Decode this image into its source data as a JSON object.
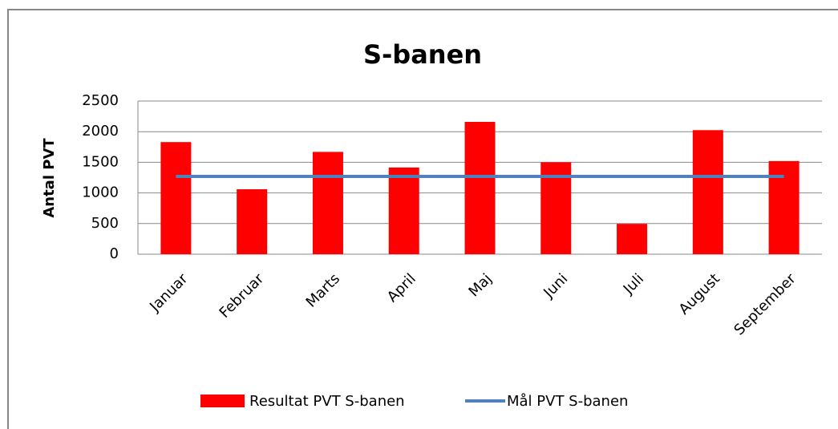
{
  "chart_data": {
    "type": "bar",
    "title": "S-banen",
    "y_label": "Antal PVT",
    "categories": [
      "Januar",
      "Februar",
      "Marts",
      "April",
      "Maj",
      "Juni",
      "Juli",
      "August",
      "September"
    ],
    "series": [
      {
        "name": "Resultat PVT S-banen",
        "color": "#ff0000",
        "type": "bar",
        "values": [
          1830,
          1060,
          1670,
          1415,
          2160,
          1500,
          495,
          2025,
          1520
        ]
      },
      {
        "name": "Mål PVT S-banen",
        "color": "#4f81bd",
        "type": "line",
        "values": [
          1270,
          1270,
          1270,
          1270,
          1270,
          1270,
          1270,
          1270,
          1270
        ]
      }
    ],
    "ylim": [
      0,
      2500
    ],
    "yticks": [
      0,
      500,
      1000,
      1500,
      2000,
      2500
    ],
    "grid": true
  }
}
